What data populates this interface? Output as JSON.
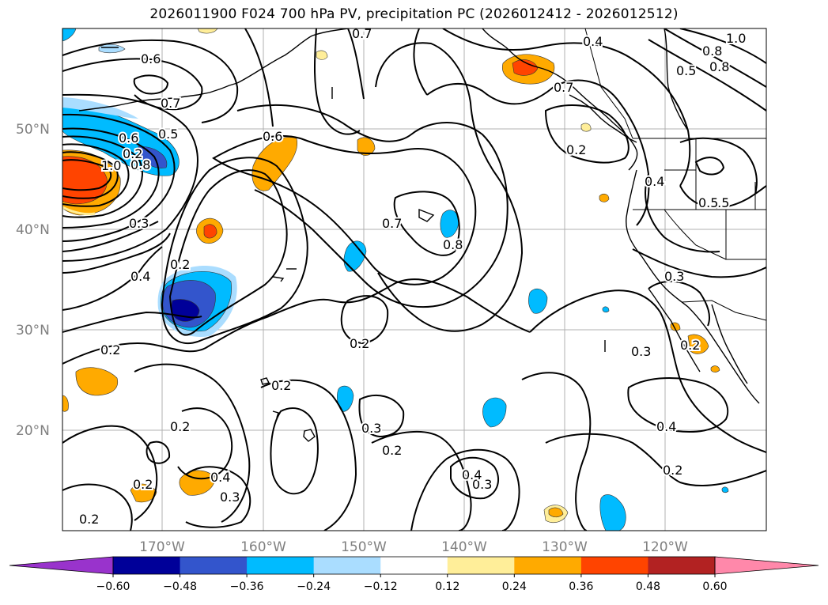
{
  "title": "2026011900 F024 700 hPa PV, precipitation PC (2026012412 - 2026012512)",
  "map": {
    "lat_labels": [
      "50°N",
      "40°N",
      "30°N",
      "20°N"
    ],
    "lon_labels": [
      "170°W",
      "160°W",
      "150°W",
      "140°W",
      "130°W",
      "120°W"
    ],
    "contour_labels": [
      "0.6",
      "0.7",
      "0.7",
      "0.4",
      "1.0",
      "0.8",
      "0.8",
      "0.5",
      "0.5",
      "0.6",
      "0.6",
      "0.7",
      "0.5",
      "1.0",
      "0.8",
      "0.3",
      "0.4",
      "0.2",
      "0.2",
      "0.7",
      "0.8",
      "0.2",
      "0.2",
      "0.4",
      "0.5",
      "0.3",
      "0.3",
      "0.2",
      "0.2",
      "0.2",
      "0.3",
      "0.2",
      "0.4",
      "0.2",
      "0.4",
      "0.3",
      "0.3",
      "0.4",
      "0.2",
      "0.2",
      "0.2"
    ]
  },
  "colorbar": {
    "colors": [
      "#9933cc",
      "#000099",
      "#3355cc",
      "#00bbff",
      "#aaddff",
      "#ffffff",
      "#ffee99",
      "#ffaa00",
      "#ff4400",
      "#b22222",
      "#ff88aa"
    ],
    "tick_labels": [
      "−0.60",
      "−0.48",
      "−0.36",
      "−0.24",
      "−0.12",
      "0.12",
      "0.24",
      "0.36",
      "0.48",
      "0.60"
    ]
  }
}
